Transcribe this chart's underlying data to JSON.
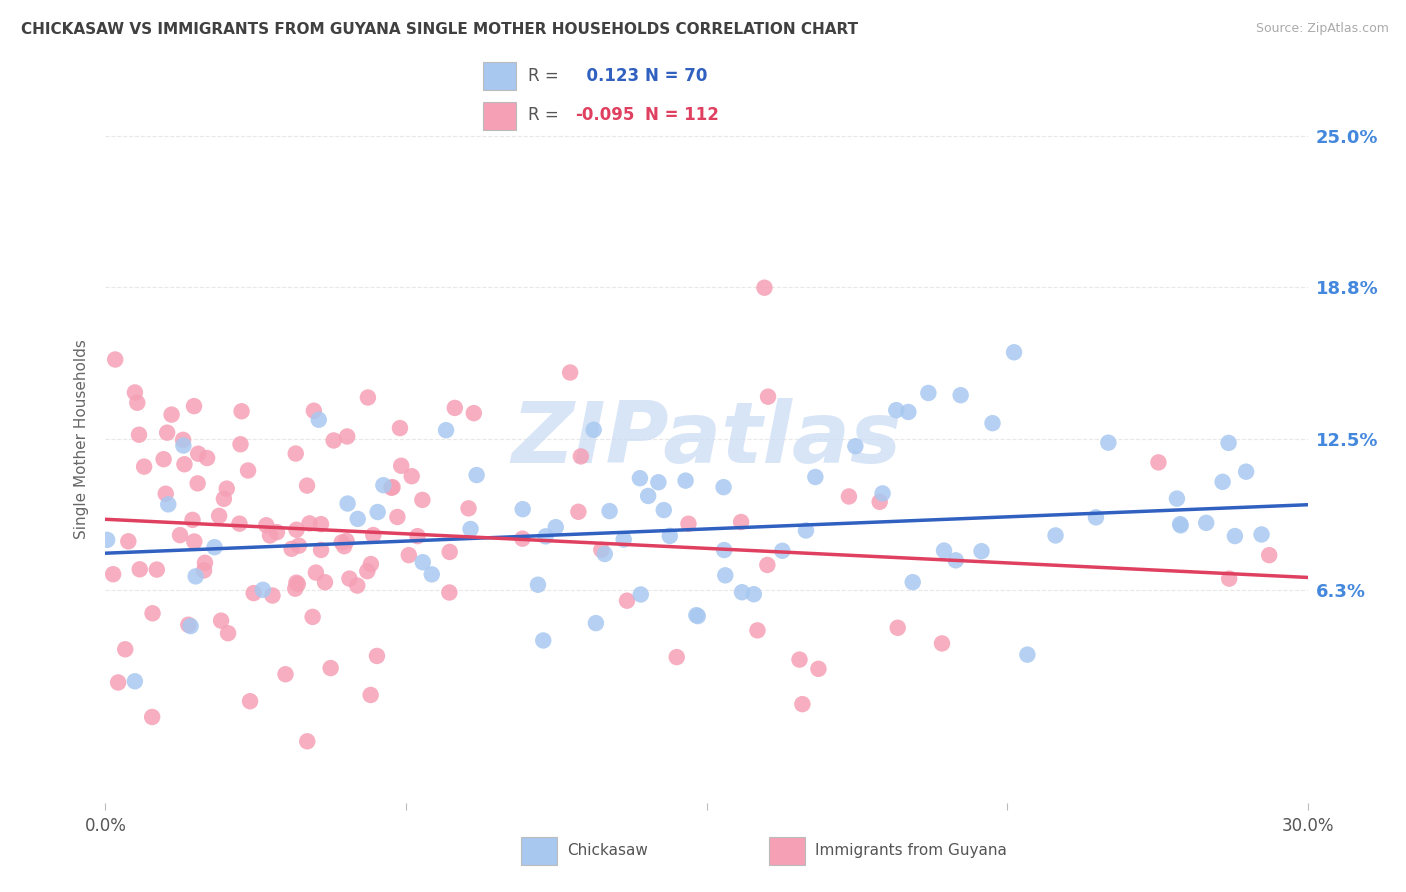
{
  "title": "CHICKASAW VS IMMIGRANTS FROM GUYANA SINGLE MOTHER HOUSEHOLDS CORRELATION CHART",
  "source": "Source: ZipAtlas.com",
  "ylabel": "Single Mother Households",
  "ytick_labels": [
    "6.3%",
    "12.5%",
    "18.8%",
    "25.0%"
  ],
  "ytick_values": [
    0.063,
    0.125,
    0.188,
    0.25
  ],
  "xmin": 0.0,
  "xmax": 0.3,
  "ymin": -0.025,
  "ymax": 0.275,
  "series1_name": "Chickasaw",
  "series1_color": "#a8c8f0",
  "series1_R": 0.123,
  "series1_N": 70,
  "series2_name": "Immigrants from Guyana",
  "series2_color": "#f5a0b5",
  "series2_R": -0.095,
  "series2_N": 112,
  "trend1_color": "#3060c0",
  "trend2_color": "#e04060",
  "trend1_y_start": 0.078,
  "trend1_y_end": 0.098,
  "trend2_y_start": 0.092,
  "trend2_y_end": 0.068,
  "watermark": "ZIPatlas",
  "watermark_color": "#ccddf5",
  "background_color": "#ffffff",
  "grid_color": "#e8e8e8",
  "title_color": "#404040",
  "right_axis_color": "#4488dd"
}
